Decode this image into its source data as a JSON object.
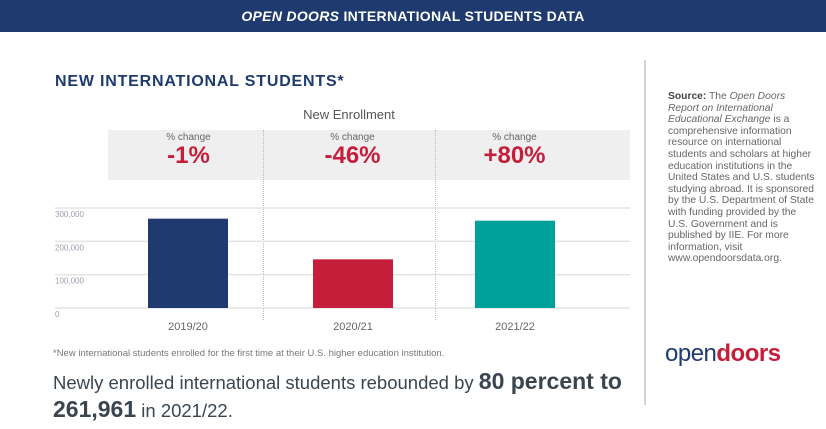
{
  "header": {
    "title_italic": "OPEN DOORS",
    "title_rest": " INTERNATIONAL STUDENTS DATA"
  },
  "chart_data": {
    "type": "bar",
    "title": "NEW INTERNATIONAL STUDENTS*",
    "subtitle": "New Enrollment",
    "categories": [
      "2019/20",
      "2020/21",
      "2021/22"
    ],
    "values": [
      268000,
      146000,
      261961
    ],
    "colors": [
      "#1f3a6e",
      "#c41e3a",
      "#00a19a"
    ],
    "pct_change_label": "% change",
    "pct_change": [
      "-1%",
      "-46%",
      "+80%"
    ],
    "ylim": [
      0,
      300000
    ],
    "yticks": [
      0,
      100000,
      200000,
      300000
    ],
    "ytick_labels": [
      "0",
      "100,000",
      "200,000",
      "300,000"
    ],
    "grid": true
  },
  "footnote": "*New international students enrolled for the first time at their U.S. higher education institution.",
  "summary": {
    "pre": "Newly enrolled international students rebounded by ",
    "bold1": "80 percent to",
    "bold2": "261,961",
    "post": " in 2021/22."
  },
  "source": {
    "label": "Source:",
    "pre": " The ",
    "italic": "Open Doors Report on International Educational Exchange",
    "post": " is a comprehensive information resource on international students and scholars at higher education institutions in the United States and U.S. students studying abroad. It is sponsored by the U.S. Department of State with funding provided by the U.S. Government and is published by IIE. For more information, visit www.opendoorsdata.org."
  },
  "logo": {
    "part1": "open",
    "part2": "doors"
  }
}
